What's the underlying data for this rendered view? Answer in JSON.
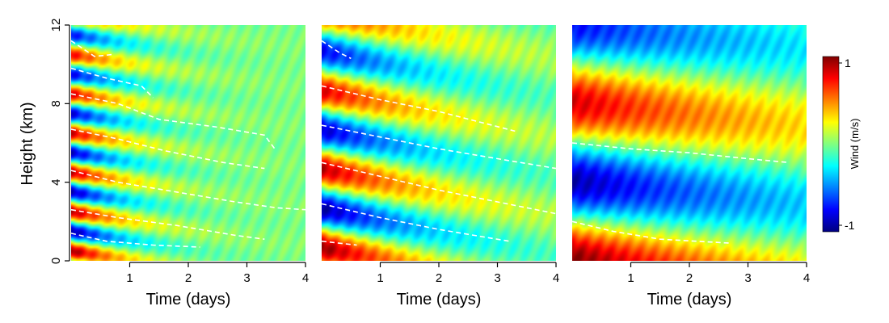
{
  "chart_data": {
    "type": "heatmap",
    "ylabel": "Height (km)",
    "colorbar": {
      "label": "Wind (m/s)",
      "ticks": [
        {
          "value": 1,
          "label": "1"
        },
        {
          "value": -1,
          "label": "-1"
        }
      ],
      "colormap": [
        "#00007f",
        "#0000ff",
        "#0080ff",
        "#00ffff",
        "#80ff80",
        "#ffff00",
        "#ff8000",
        "#ff0000",
        "#7f0000"
      ]
    },
    "panels": [
      {
        "xlabel": "Time (days)",
        "xlim": [
          0,
          4
        ],
        "ylim": [
          0,
          12
        ],
        "xticks": [
          "1",
          "2",
          "3",
          "4"
        ],
        "yticks": [
          "0",
          "4",
          "8",
          "12"
        ],
        "show_yticks": true,
        "pattern": {
          "period_km": 2.0,
          "slope_km_per_day": 0.45,
          "amp_start": 1.0,
          "amp_decay_per_day": 1.1,
          "phase": 0.0
        },
        "contours": [
          {
            "x": [
              0,
              0.4,
              0.7
            ],
            "y": [
              11.2,
              10.4,
              10.5
            ]
          },
          {
            "x": [
              0,
              0.6,
              1.2,
              1.4
            ],
            "y": [
              9.8,
              9.3,
              8.9,
              8.3
            ]
          },
          {
            "x": [
              0,
              0.8,
              1.5,
              2.5,
              3.3,
              3.5
            ],
            "y": [
              8.5,
              8.0,
              7.2,
              6.8,
              6.4,
              5.6
            ]
          },
          {
            "x": [
              0,
              0.8,
              1.6,
              2.6,
              3.3
            ],
            "y": [
              6.7,
              6.2,
              5.6,
              5.0,
              4.7
            ]
          },
          {
            "x": [
              0,
              0.8,
              1.8,
              2.8,
              3.5,
              4.0
            ],
            "y": [
              4.6,
              4.0,
              3.5,
              3.0,
              2.7,
              2.6
            ]
          },
          {
            "x": [
              0,
              0.8,
              1.8,
              2.8,
              3.3
            ],
            "y": [
              2.6,
              2.2,
              1.8,
              1.3,
              1.1
            ]
          },
          {
            "x": [
              0,
              0.6,
              1.4,
              2.2
            ],
            "y": [
              1.4,
              1.0,
              0.8,
              0.7
            ]
          }
        ]
      },
      {
        "xlabel": "Time (days)",
        "xlim": [
          0,
          4
        ],
        "ylim": [
          0,
          12
        ],
        "xticks": [
          "1",
          "2",
          "3",
          "4"
        ],
        "yticks": [],
        "show_yticks": false,
        "pattern": {
          "period_km": 4.0,
          "slope_km_per_day": 0.6,
          "amp_start": 1.0,
          "amp_decay_per_day": 0.55,
          "phase": 0.5
        },
        "contours": [
          {
            "x": [
              0,
              0.3,
              0.5
            ],
            "y": [
              11.2,
              10.6,
              10.3
            ]
          },
          {
            "x": [
              0,
              1.0,
              2.0,
              3.3
            ],
            "y": [
              8.9,
              8.2,
              7.6,
              6.6
            ]
          },
          {
            "x": [
              0,
              1.0,
              2.0,
              3.0,
              4.0
            ],
            "y": [
              6.9,
              6.3,
              5.7,
              5.2,
              4.7
            ]
          },
          {
            "x": [
              0,
              1.0,
              2.0,
              3.0,
              4.0
            ],
            "y": [
              5.0,
              4.3,
              3.6,
              3.0,
              2.4
            ]
          },
          {
            "x": [
              0,
              1.0,
              2.0,
              3.2
            ],
            "y": [
              2.9,
              2.2,
              1.6,
              1.0
            ]
          },
          {
            "x": [
              0,
              0.6
            ],
            "y": [
              1.0,
              0.8
            ]
          }
        ]
      },
      {
        "xlabel": "Time (days)",
        "xlim": [
          0,
          4
        ],
        "ylim": [
          0,
          12
        ],
        "xticks": [
          "1",
          "2",
          "3",
          "4"
        ],
        "yticks": [],
        "show_yticks": false,
        "pattern": {
          "period_km": 8.0,
          "slope_km_per_day": 0.3,
          "amp_start": 1.0,
          "amp_decay_per_day": 0.25,
          "phase": 1.5
        },
        "contours": [
          {
            "x": [
              0,
              1.0,
              2.0,
              3.0,
              3.7
            ],
            "y": [
              6.0,
              5.7,
              5.5,
              5.2,
              5.0
            ]
          },
          {
            "x": [
              0,
              0.7,
              1.5,
              2.7
            ],
            "y": [
              2.0,
              1.5,
              1.1,
              0.9
            ]
          }
        ]
      }
    ]
  }
}
